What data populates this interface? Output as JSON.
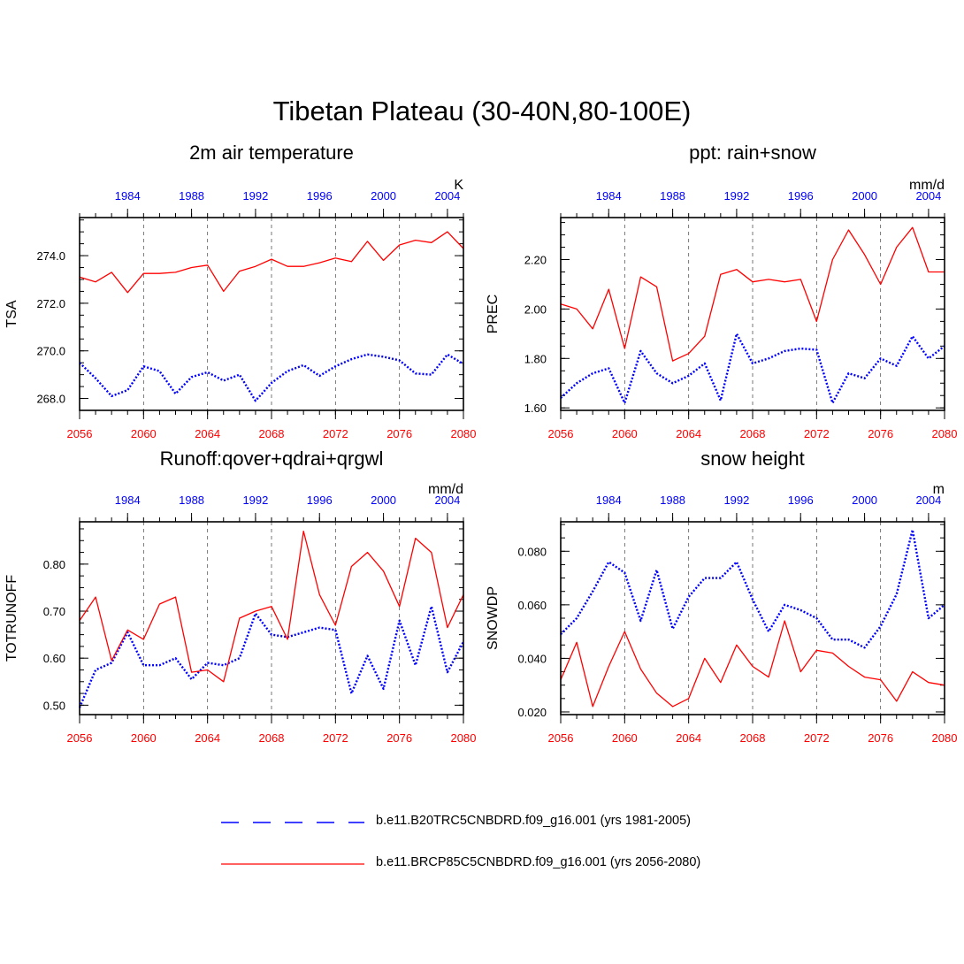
{
  "figure_title": "Tibetan Plateau (30-40N,80-100E)",
  "legend": [
    {
      "label": "b.e11.B20TRC5CNBDRD.f09_g16.001 (yrs 1981-2005)",
      "color": "#0000ff",
      "style": "dashed"
    },
    {
      "label": "b.e11.BRCP85C5CNBDRD.f09_g16.001 (yrs 2056-2080)",
      "color": "#ff0000",
      "style": "solid"
    }
  ],
  "colors": {
    "historical": "#0000ff",
    "future": "#ff0000",
    "axis": "#000000",
    "grid": "#555555"
  },
  "chart_data": [
    {
      "type": "line",
      "title": "2m air temperature",
      "ylabel": "TSA",
      "units": "K",
      "ylim": [
        267.5,
        275.6
      ],
      "yticks": [
        268.0,
        270.0,
        272.0,
        274.0
      ],
      "ytick_labels": [
        "268.0",
        "270.0",
        "272.0",
        "274.0"
      ],
      "bottom_axis": {
        "range": [
          2056,
          2080
        ],
        "ticks": [
          2056,
          2060,
          2064,
          2068,
          2072,
          2076,
          2080
        ],
        "labels": [
          "2056",
          "2060",
          "2064",
          "2068",
          "2072",
          "2076",
          "2080"
        ]
      },
      "top_axis": {
        "range": [
          1981,
          2005
        ],
        "ticks": [
          1984,
          1988,
          1992,
          1996,
          2000,
          2004
        ],
        "labels": [
          "1984",
          "1988",
          "1992",
          "1996",
          "2000",
          "2004"
        ]
      },
      "grid_x": [
        2060,
        2064,
        2068,
        2072,
        2076
      ],
      "series": [
        {
          "name": "b.e11.B20TRC5CNBDRD.f09_g16.001 (yrs 1981-2005)",
          "x_axis": "top",
          "color": "#0000ff",
          "style": "dashed",
          "x": [
            1981,
            1982,
            1983,
            1984,
            1985,
            1986,
            1987,
            1988,
            1989,
            1990,
            1991,
            1992,
            1993,
            1994,
            1995,
            1996,
            1997,
            1998,
            1999,
            2000,
            2001,
            2002,
            2003,
            2004,
            2005
          ],
          "values": [
            269.5,
            268.85,
            268.1,
            268.35,
            269.35,
            269.15,
            268.2,
            268.9,
            269.1,
            268.75,
            269.0,
            267.9,
            268.65,
            269.15,
            269.4,
            268.95,
            269.35,
            269.65,
            269.85,
            269.75,
            269.6,
            269.05,
            269.0,
            269.85,
            269.45
          ]
        },
        {
          "name": "b.e11.BRCP85C5CNBDRD.f09_g16.001 (yrs 2056-2080)",
          "x_axis": "bottom",
          "color": "#ff0000",
          "style": "solid",
          "x": [
            2056,
            2057,
            2058,
            2059,
            2060,
            2061,
            2062,
            2063,
            2064,
            2065,
            2066,
            2067,
            2068,
            2069,
            2070,
            2071,
            2072,
            2073,
            2074,
            2075,
            2076,
            2077,
            2078,
            2079,
            2080
          ],
          "values": [
            273.1,
            272.9,
            273.3,
            272.45,
            273.25,
            273.25,
            273.3,
            273.5,
            273.6,
            272.5,
            273.35,
            273.55,
            273.85,
            273.55,
            273.55,
            273.7,
            273.9,
            273.75,
            274.6,
            273.8,
            274.45,
            274.65,
            274.55,
            275.0,
            274.3
          ]
        }
      ]
    },
    {
      "type": "line",
      "title": "ppt: rain+snow",
      "ylabel": "PREC",
      "units": "mm/d",
      "ylim": [
        1.59,
        2.37
      ],
      "yticks": [
        1.6,
        1.8,
        2.0,
        2.2
      ],
      "ytick_labels": [
        "1.60",
        "1.80",
        "2.00",
        "2.20"
      ],
      "bottom_axis": {
        "range": [
          2056,
          2080
        ],
        "ticks": [
          2056,
          2060,
          2064,
          2068,
          2072,
          2076,
          2080
        ],
        "labels": [
          "2056",
          "2060",
          "2064",
          "2068",
          "2072",
          "2076",
          "2080"
        ]
      },
      "top_axis": {
        "range": [
          1981,
          2005
        ],
        "ticks": [
          1984,
          1988,
          1992,
          1996,
          2000,
          2004
        ],
        "labels": [
          "1984",
          "1988",
          "1992",
          "1996",
          "2000",
          "2004"
        ]
      },
      "grid_x": [
        2060,
        2064,
        2068,
        2072,
        2076
      ],
      "series": [
        {
          "name": "b.e11.B20TRC5CNBDRD.f09_g16.001 (yrs 1981-2005)",
          "x_axis": "top",
          "color": "#0000ff",
          "style": "dashed",
          "x": [
            1981,
            1982,
            1983,
            1984,
            1985,
            1986,
            1987,
            1988,
            1989,
            1990,
            1991,
            1992,
            1993,
            1994,
            1995,
            1996,
            1997,
            1998,
            1999,
            2000,
            2001,
            2002,
            2003,
            2004,
            2005
          ],
          "values": [
            1.64,
            1.7,
            1.74,
            1.76,
            1.62,
            1.83,
            1.74,
            1.7,
            1.73,
            1.78,
            1.63,
            1.9,
            1.78,
            1.8,
            1.83,
            1.84,
            1.835,
            1.62,
            1.74,
            1.72,
            1.8,
            1.77,
            1.89,
            1.8,
            1.85
          ]
        },
        {
          "name": "b.e11.BRCP85C5CNBDRD.f09_g16.001 (yrs 2056-2080)",
          "x_axis": "bottom",
          "color": "#ff0000",
          "style": "solid",
          "x": [
            2056,
            2057,
            2058,
            2059,
            2060,
            2061,
            2062,
            2063,
            2064,
            2065,
            2066,
            2067,
            2068,
            2069,
            2070,
            2071,
            2072,
            2073,
            2074,
            2075,
            2076,
            2077,
            2078,
            2079,
            2080
          ],
          "values": [
            2.02,
            2.0,
            1.92,
            2.08,
            1.84,
            2.13,
            2.09,
            1.79,
            1.82,
            1.89,
            2.14,
            2.16,
            2.11,
            2.12,
            2.11,
            2.12,
            1.95,
            2.2,
            2.32,
            2.22,
            2.1,
            2.25,
            2.33,
            2.15,
            2.15
          ]
        }
      ]
    },
    {
      "type": "line",
      "title": "Runoff:qover+qdrai+qrgwl",
      "ylabel": "TOTRUNOFF",
      "units": "mm/d",
      "ylim": [
        0.48,
        0.89
      ],
      "yticks": [
        0.5,
        0.6,
        0.7,
        0.8
      ],
      "ytick_labels": [
        "0.50",
        "0.60",
        "0.70",
        "0.80"
      ],
      "bottom_axis": {
        "range": [
          2056,
          2080
        ],
        "ticks": [
          2056,
          2060,
          2064,
          2068,
          2072,
          2076,
          2080
        ],
        "labels": [
          "2056",
          "2060",
          "2064",
          "2068",
          "2072",
          "2076",
          "2080"
        ]
      },
      "top_axis": {
        "range": [
          1981,
          2005
        ],
        "ticks": [
          1984,
          1988,
          1992,
          1996,
          2000,
          2004
        ],
        "labels": [
          "1984",
          "1988",
          "1992",
          "1996",
          "2000",
          "2004"
        ]
      },
      "grid_x": [
        2060,
        2064,
        2068,
        2072,
        2076
      ],
      "series": [
        {
          "name": "b.e11.B20TRC5CNBDRD.f09_g16.001 (yrs 1981-2005)",
          "x_axis": "top",
          "color": "#0000ff",
          "style": "dashed",
          "x": [
            1981,
            1982,
            1983,
            1984,
            1985,
            1986,
            1987,
            1988,
            1989,
            1990,
            1991,
            1992,
            1993,
            1994,
            1995,
            1996,
            1997,
            1998,
            1999,
            2000,
            2001,
            2002,
            2003,
            2004,
            2005
          ],
          "values": [
            0.495,
            0.575,
            0.59,
            0.655,
            0.585,
            0.585,
            0.6,
            0.555,
            0.59,
            0.585,
            0.6,
            0.695,
            0.65,
            0.645,
            0.655,
            0.665,
            0.66,
            0.525,
            0.605,
            0.535,
            0.68,
            0.585,
            0.71,
            0.57,
            0.635
          ]
        },
        {
          "name": "b.e11.BRCP85C5CNBDRD.f09_g16.001 (yrs 2056-2080)",
          "x_axis": "bottom",
          "color": "#ff0000",
          "style": "solid",
          "x": [
            2056,
            2057,
            2058,
            2059,
            2060,
            2061,
            2062,
            2063,
            2064,
            2065,
            2066,
            2067,
            2068,
            2069,
            2070,
            2071,
            2072,
            2073,
            2074,
            2075,
            2076,
            2077,
            2078,
            2079,
            2080
          ],
          "values": [
            0.68,
            0.73,
            0.595,
            0.66,
            0.64,
            0.715,
            0.73,
            0.57,
            0.575,
            0.55,
            0.685,
            0.7,
            0.71,
            0.64,
            0.87,
            0.735,
            0.67,
            0.795,
            0.825,
            0.785,
            0.71,
            0.855,
            0.825,
            0.665,
            0.735
          ]
        }
      ]
    },
    {
      "type": "line",
      "title": "snow height",
      "ylabel": "SNOWDP",
      "units": "m",
      "ylim": [
        0.019,
        0.091
      ],
      "yticks": [
        0.02,
        0.04,
        0.06,
        0.08
      ],
      "ytick_labels": [
        "0.020",
        "0.040",
        "0.060",
        "0.080"
      ],
      "bottom_axis": {
        "range": [
          2056,
          2080
        ],
        "ticks": [
          2056,
          2060,
          2064,
          2068,
          2072,
          2076,
          2080
        ],
        "labels": [
          "2056",
          "2060",
          "2064",
          "2068",
          "2072",
          "2076",
          "2080"
        ]
      },
      "top_axis": {
        "range": [
          1981,
          2005
        ],
        "ticks": [
          1984,
          1988,
          1992,
          1996,
          2000,
          2004
        ],
        "labels": [
          "1984",
          "1988",
          "1992",
          "1996",
          "2000",
          "2004"
        ]
      },
      "grid_x": [
        2060,
        2064,
        2068,
        2072,
        2076
      ],
      "series": [
        {
          "name": "b.e11.B20TRC5CNBDRD.f09_g16.001 (yrs 1981-2005)",
          "x_axis": "top",
          "color": "#0000ff",
          "style": "dashed",
          "x": [
            1981,
            1982,
            1983,
            1984,
            1985,
            1986,
            1987,
            1988,
            1989,
            1990,
            1991,
            1992,
            1993,
            1994,
            1995,
            1996,
            1997,
            1998,
            1999,
            2000,
            2001,
            2002,
            2003,
            2004,
            2005
          ],
          "values": [
            0.049,
            0.055,
            0.065,
            0.076,
            0.072,
            0.054,
            0.073,
            0.051,
            0.063,
            0.07,
            0.07,
            0.076,
            0.062,
            0.05,
            0.06,
            0.058,
            0.055,
            0.047,
            0.047,
            0.044,
            0.052,
            0.064,
            0.088,
            0.055,
            0.06
          ]
        },
        {
          "name": "b.e11.BRCP85C5CNBDRD.f09_g16.001 (yrs 2056-2080)",
          "x_axis": "bottom",
          "color": "#ff0000",
          "style": "solid",
          "x": [
            2056,
            2057,
            2058,
            2059,
            2060,
            2061,
            2062,
            2063,
            2064,
            2065,
            2066,
            2067,
            2068,
            2069,
            2070,
            2071,
            2072,
            2073,
            2074,
            2075,
            2076,
            2077,
            2078,
            2079,
            2080
          ],
          "values": [
            0.032,
            0.046,
            0.022,
            0.037,
            0.05,
            0.036,
            0.027,
            0.022,
            0.025,
            0.04,
            0.031,
            0.045,
            0.037,
            0.033,
            0.054,
            0.035,
            0.043,
            0.042,
            0.037,
            0.033,
            0.032,
            0.024,
            0.035,
            0.031,
            0.03
          ]
        }
      ]
    }
  ]
}
